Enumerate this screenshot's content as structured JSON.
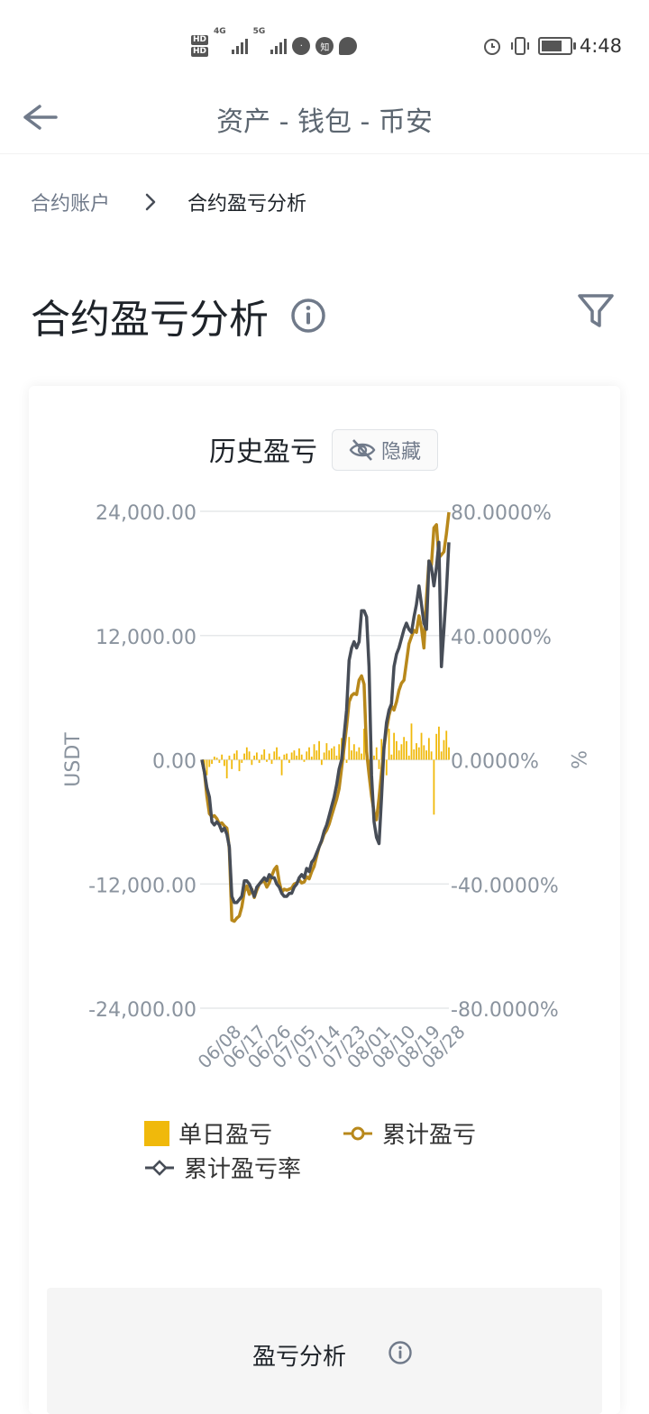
{
  "status_bar": {
    "time": "4:48",
    "hd1": "HD",
    "hd2": "HD",
    "net1": "4G",
    "net2": "5G",
    "battery_level": 0.75,
    "app_icons": [
      "zhihu-icon",
      "message-icon"
    ],
    "zhihu_label": "知"
  },
  "header": {
    "title": "资产 - 钱包 - 币安"
  },
  "breadcrumb": {
    "parent": "合约账户",
    "current": "合约盈亏分析"
  },
  "page": {
    "title": "合约盈亏分析"
  },
  "chart_card": {
    "title": "历史盈亏",
    "hide_label": "隐藏"
  },
  "chart_data": {
    "type": "bar+line",
    "yleft": {
      "label": "USDT",
      "ticks": [
        "24,000.00",
        "12,000.00",
        "0.00",
        "-12,000.00",
        "-24,000.00"
      ],
      "range": [
        -24000,
        24000
      ]
    },
    "yright": {
      "label": "%",
      "ticks": [
        "80.0000%",
        "40.0000%",
        "0.0000%",
        "-40.0000%",
        "-80.0000%"
      ],
      "range": [
        -80,
        80
      ]
    },
    "x_ticks": [
      "06/08",
      "06/17",
      "06/26",
      "07/05",
      "07/14",
      "07/23",
      "08/01",
      "08/10",
      "08/19",
      "08/28"
    ],
    "n_days": 100,
    "series": [
      {
        "name": "单日盈亏",
        "kind": "bar",
        "color": "#f0b90b",
        "values": [
          0,
          -800,
          -1500,
          -700,
          -400,
          300,
          200,
          -300,
          500,
          -600,
          -1800,
          400,
          -900,
          600,
          900,
          -1100,
          -300,
          600,
          1200,
          800,
          -500,
          400,
          700,
          -300,
          500,
          1000,
          -200,
          600,
          -400,
          800,
          1200,
          300,
          -1500,
          500,
          600,
          -300,
          700,
          900,
          400,
          1100,
          500,
          -200,
          800,
          1200,
          300,
          1500,
          900,
          1800,
          -500,
          700,
          1600,
          900,
          1100,
          1300,
          400,
          1500,
          2100,
          1800,
          -300,
          2200,
          900,
          1500,
          800,
          1200,
          600,
          3000,
          1500,
          -800,
          1800,
          400,
          1200,
          -900,
          2000,
          1100,
          -1500,
          3000,
          500,
          2600,
          1800,
          900,
          1500,
          2200,
          1800,
          400,
          3500,
          1000,
          1600,
          1200,
          2600,
          1400,
          900,
          2100,
          800,
          -5300,
          2500,
          3200,
          800,
          1900,
          2800,
          1200
        ]
      },
      {
        "name": "累计盈亏",
        "kind": "line",
        "color": "#b8881b",
        "values": [
          0,
          -1200,
          -3500,
          -5200,
          -5500,
          -5400,
          -5700,
          -6200,
          -6100,
          -6400,
          -6600,
          -8600,
          -15500,
          -15600,
          -15300,
          -15100,
          -14200,
          -12700,
          -12200,
          -13000,
          -12500,
          -13300,
          -12600,
          -12000,
          -11800,
          -11700,
          -12300,
          -11900,
          -11200,
          -10600,
          -10300,
          -11800,
          -12800,
          -12500,
          -12600,
          -12500,
          -12400,
          -12000,
          -11900,
          -11600,
          -11900,
          -11800,
          -11300,
          -11500,
          -10800,
          -10300,
          -9300,
          -8400,
          -7900,
          -7200,
          -6800,
          -6200,
          -5400,
          -4600,
          -3800,
          -2800,
          -800,
          1200,
          3200,
          5600,
          6200,
          6400,
          6300,
          7700,
          8100,
          7300,
          800,
          -1400,
          -3500,
          -5100,
          -5800,
          -3700,
          -1200,
          1200,
          2900,
          4300,
          5200,
          4800,
          5600,
          6700,
          7400,
          7700,
          9400,
          11200,
          11900,
          12500,
          12300,
          13900,
          12700,
          10800,
          15600,
          19200,
          18800,
          22400,
          22700,
          19500,
          19800,
          20100,
          21800,
          23900
        ]
      },
      {
        "name": "累计盈亏率",
        "kind": "line",
        "color": "#474d57",
        "values": [
          0,
          -4,
          -9,
          -12,
          -20,
          -21,
          -20,
          -21,
          -23,
          -22,
          -24,
          -28,
          -44,
          -46,
          -46,
          -45,
          -44,
          -39,
          -39,
          -40,
          -42,
          -44,
          -41,
          -40,
          -39,
          -38,
          -39,
          -37,
          -38,
          -38,
          -40,
          -41,
          -43,
          -44,
          -44,
          -43,
          -43,
          -41,
          -40,
          -38,
          -37,
          -38,
          -35,
          -36,
          -33,
          -32,
          -30,
          -28,
          -26,
          -23,
          -21,
          -18,
          -15,
          -12,
          -8,
          -3,
          0,
          8,
          16,
          32,
          36,
          38,
          36,
          38,
          48,
          48,
          46,
          30,
          -5,
          -20,
          -25,
          -27,
          -12,
          4,
          12,
          16,
          18,
          30,
          34,
          36,
          39,
          42,
          44,
          42,
          41,
          46,
          50,
          56,
          50,
          44,
          42,
          64,
          62,
          56,
          62,
          70,
          30,
          42,
          54,
          70
        ]
      }
    ],
    "colors": {
      "bar": "#f0b90b",
      "cum_pnl": "#b8881b",
      "cum_rate": "#474d57",
      "grid": "#e6e8ea",
      "tick": "#8a939e"
    }
  },
  "legend": {
    "daily": "单日盈亏",
    "cumulative": "累计盈亏",
    "cumulative_rate": "累计盈亏率"
  },
  "pnl_section": {
    "title": "盈亏分析"
  }
}
